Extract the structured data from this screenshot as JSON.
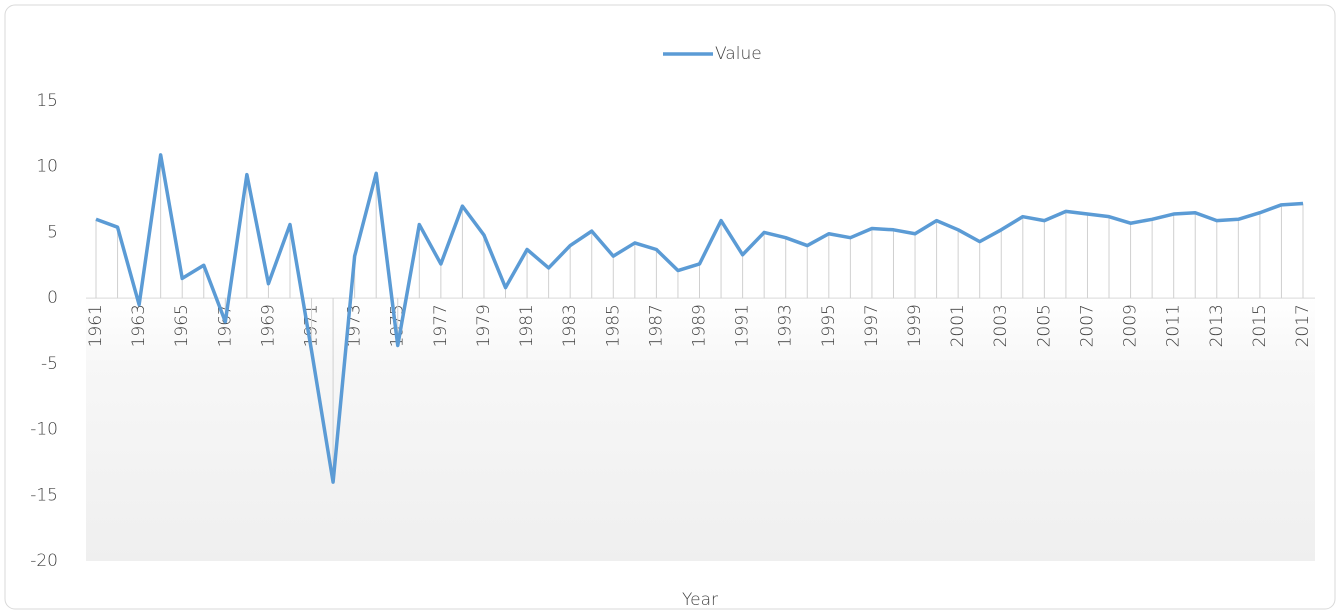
{
  "chart_data": {
    "type": "line",
    "x_label": "Year",
    "categories": [
      "1961",
      null,
      "1963",
      null,
      "1965",
      null,
      "1967",
      null,
      "1969",
      null,
      "1971",
      null,
      "1973",
      null,
      "1975",
      null,
      "1977",
      null,
      "1979",
      null,
      "1981",
      null,
      "1983",
      null,
      "1985",
      null,
      "1987",
      null,
      "1989",
      null,
      "1991",
      null,
      "1993",
      null,
      "1995",
      null,
      "1997",
      null,
      "1999",
      null,
      "2001",
      null,
      "2003",
      null,
      "2005",
      null,
      "2007",
      null,
      "2009",
      null,
      "2011",
      null,
      "2013",
      null,
      "2015",
      null,
      "2017"
    ],
    "series": [
      {
        "name": "Value",
        "color": "#5b9bd5",
        "values": [
          6.0,
          5.4,
          -0.5,
          10.9,
          1.5,
          2.5,
          -1.8,
          9.4,
          1.1,
          5.6,
          -4.0,
          -14.0,
          3.2,
          9.5,
          -3.6,
          5.6,
          2.6,
          7.0,
          4.8,
          0.8,
          3.7,
          2.3,
          4.0,
          5.1,
          3.2,
          4.2,
          3.7,
          2.1,
          2.6,
          5.9,
          3.3,
          5.0,
          4.6,
          4.0,
          4.9,
          4.6,
          5.3,
          5.2,
          4.9,
          5.9,
          5.2,
          4.3,
          5.2,
          6.2,
          5.9,
          6.6,
          6.4,
          6.2,
          5.7,
          6.0,
          6.4,
          6.5,
          5.9,
          6.0,
          6.5,
          7.1,
          7.2
        ]
      }
    ],
    "ylim": [
      -20,
      15
    ],
    "yticks": [
      -20,
      -15,
      -10,
      -5,
      0,
      5,
      10,
      15
    ],
    "grid": false,
    "drop_lines": true,
    "legend": "top"
  }
}
